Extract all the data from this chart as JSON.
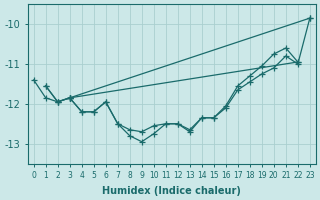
{
  "xlabel": "Humidex (Indice chaleur)",
  "ylabel": "",
  "background_color": "#cce8e8",
  "grid_color": "#aacfcf",
  "line_color": "#1a6b6b",
  "xlim": [
    -0.5,
    23.5
  ],
  "ylim": [
    -13.5,
    -9.5
  ],
  "yticks": [
    -13,
    -12,
    -11,
    -10
  ],
  "xticks": [
    0,
    1,
    2,
    3,
    4,
    5,
    6,
    7,
    8,
    9,
    10,
    11,
    12,
    13,
    14,
    15,
    16,
    17,
    18,
    19,
    20,
    21,
    22,
    23
  ],
  "series_curved1": [
    null,
    -11.55,
    -11.95,
    -11.85,
    -12.2,
    -12.2,
    -11.95,
    -12.5,
    -12.8,
    -12.95,
    -12.75,
    -12.5,
    -12.5,
    -12.7,
    -12.35,
    -12.35,
    -12.1,
    -11.65,
    -11.45,
    -11.25,
    -11.1,
    -10.8,
    -11.0,
    -9.85
  ],
  "series_curved2": [
    null,
    -11.55,
    -11.95,
    -11.85,
    -12.2,
    -12.2,
    -11.95,
    -12.5,
    -12.65,
    -12.7,
    -12.55,
    -12.5,
    -12.5,
    -12.65,
    -12.35,
    -12.35,
    -12.05,
    -11.55,
    -11.3,
    -11.05,
    -10.75,
    -10.6,
    -10.95,
    null
  ],
  "series_straight1": [
    [
      3,
      -11.85
    ],
    [
      23,
      -9.85
    ]
  ],
  "series_straight2": [
    [
      3,
      -11.85
    ],
    [
      22,
      -10.95
    ]
  ],
  "series_short": [
    [
      0,
      -11.4
    ],
    [
      1,
      -11.85
    ],
    [
      2,
      -11.95
    ],
    [
      3,
      -11.85
    ]
  ]
}
